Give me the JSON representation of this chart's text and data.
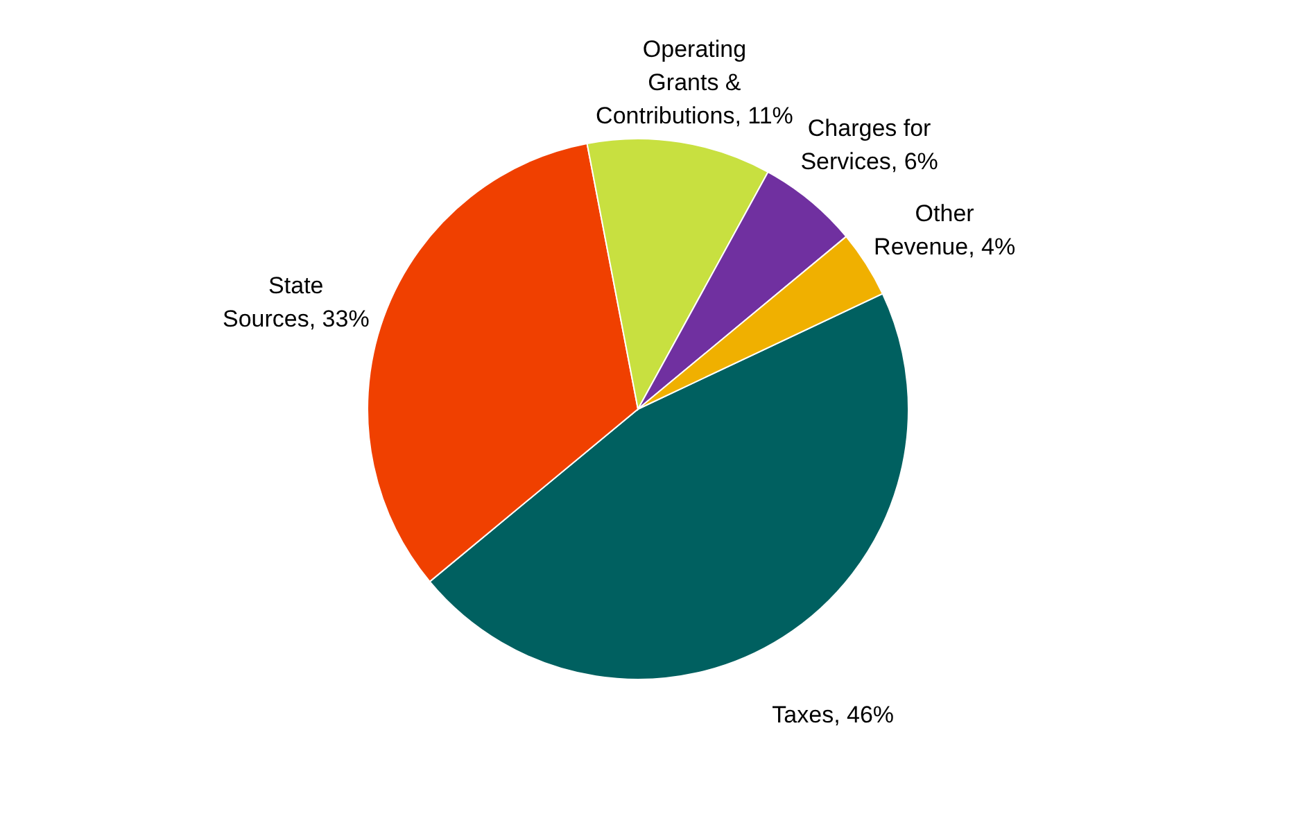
{
  "chart_data": {
    "type": "pie",
    "categories": [
      "Taxes",
      "State Sources",
      "Operating Grants & Contributions",
      "Charges for Services",
      "Other Revenue"
    ],
    "values": [
      46,
      33,
      11,
      6,
      4
    ],
    "value_labels": [
      "46%",
      "33%",
      "11%",
      "6%",
      "4%"
    ],
    "colors": [
      "#006060",
      "#f04000",
      "#c8e040",
      "#7030a0",
      "#f0b000"
    ]
  }
}
